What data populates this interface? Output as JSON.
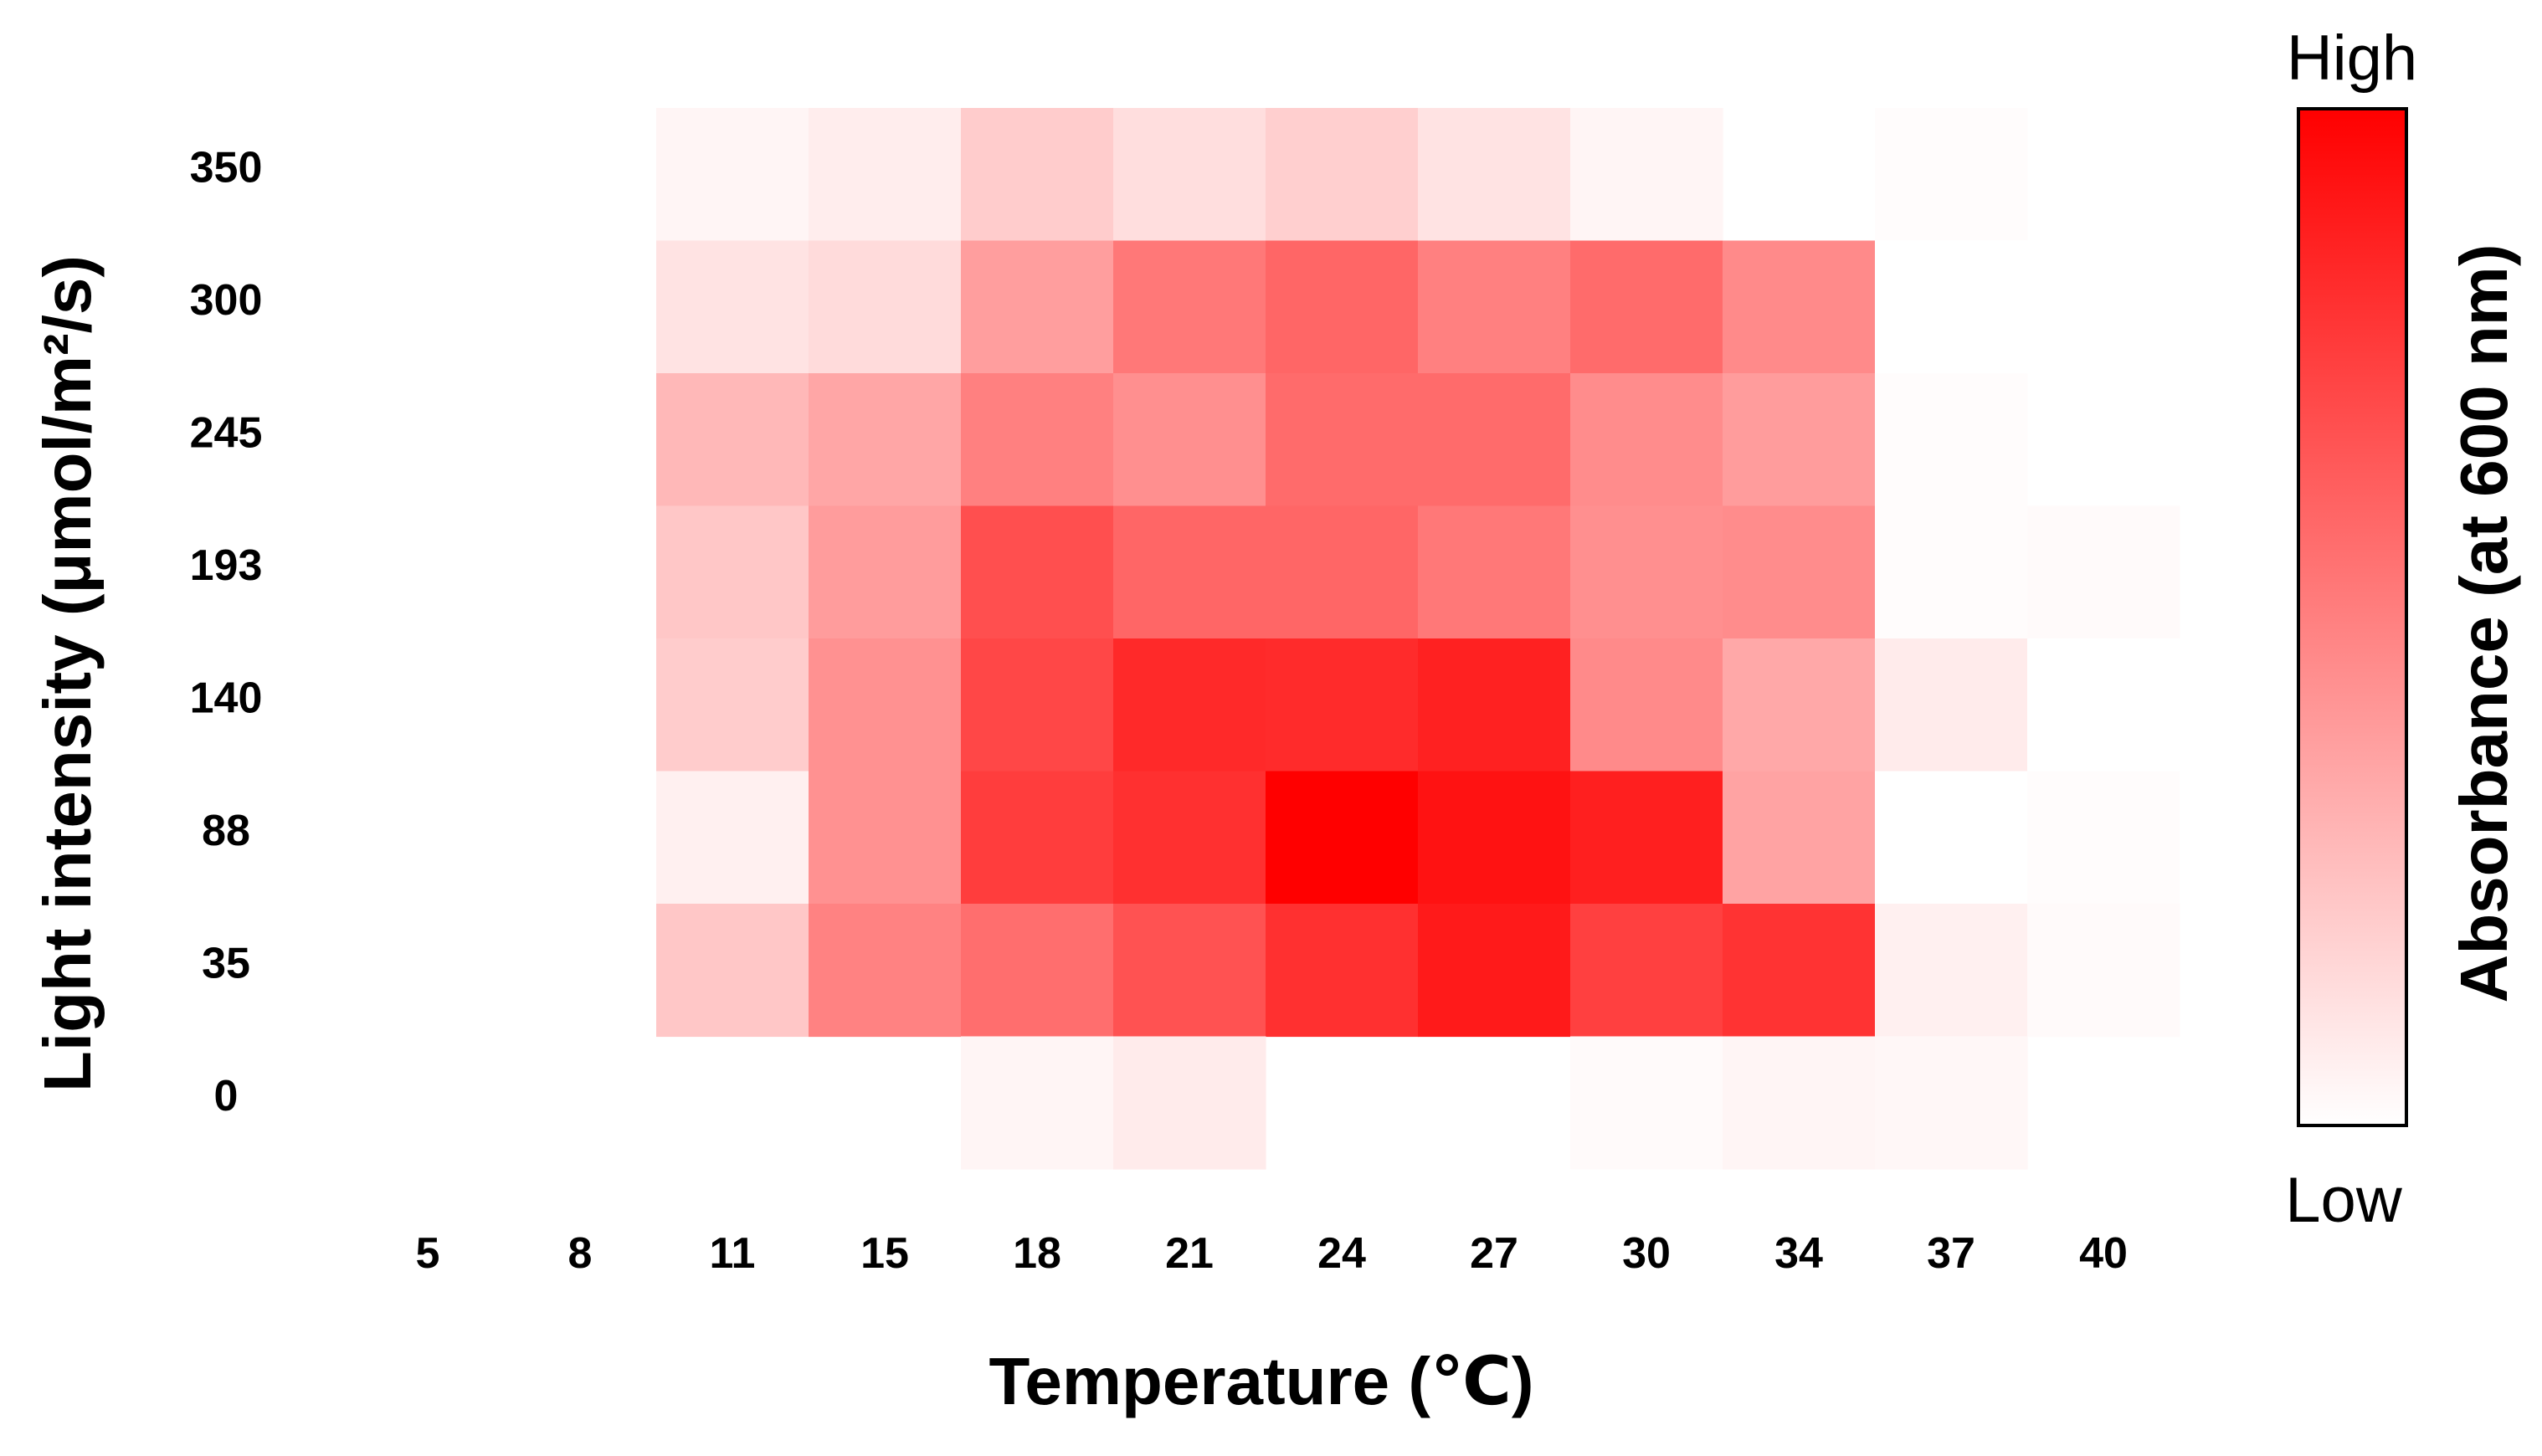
{
  "chart_data": {
    "type": "heatmap",
    "xlabel": "Temperature (℃)",
    "ylabel": "Light intensity (μmol/m²/s)",
    "x_categories": [
      "5",
      "8",
      "11",
      "15",
      "18",
      "21",
      "24",
      "27",
      "30",
      "34",
      "37",
      "40"
    ],
    "y_categories": [
      "350",
      "300",
      "245",
      "193",
      "140",
      "88",
      "35",
      "0"
    ],
    "colorbar": {
      "title": "Absorbance (at 600 nm)",
      "high_label": "High",
      "low_label": "Low",
      "low_color": "#ffffff",
      "high_color": "#ff0000"
    },
    "value_scale": "relative (0 = Low, 1 = High)",
    "values": [
      [
        null,
        null,
        0.04,
        0.07,
        0.2,
        0.13,
        0.19,
        0.11,
        0.04,
        null,
        0.01,
        null
      ],
      [
        null,
        null,
        0.11,
        0.14,
        0.38,
        0.53,
        0.6,
        0.5,
        0.58,
        0.46,
        0.0,
        null
      ],
      [
        null,
        null,
        0.28,
        0.35,
        0.5,
        0.44,
        0.58,
        0.58,
        0.45,
        0.39,
        0.01,
        null
      ],
      [
        null,
        null,
        0.22,
        0.39,
        0.69,
        0.6,
        0.6,
        0.53,
        0.44,
        0.45,
        0.01,
        0.02
      ],
      [
        null,
        null,
        0.2,
        0.43,
        0.72,
        0.84,
        0.83,
        0.87,
        0.46,
        0.34,
        0.08,
        0.0
      ],
      [
        null,
        null,
        0.06,
        0.43,
        0.76,
        0.81,
        1.0,
        0.93,
        0.88,
        0.36,
        0.0,
        0.01
      ],
      [
        null,
        null,
        0.22,
        0.49,
        0.57,
        0.68,
        0.81,
        0.9,
        0.75,
        0.8,
        0.06,
        0.02
      ],
      [
        null,
        null,
        null,
        null,
        0.04,
        0.08,
        null,
        null,
        0.02,
        0.04,
        0.03,
        null
      ]
    ]
  }
}
